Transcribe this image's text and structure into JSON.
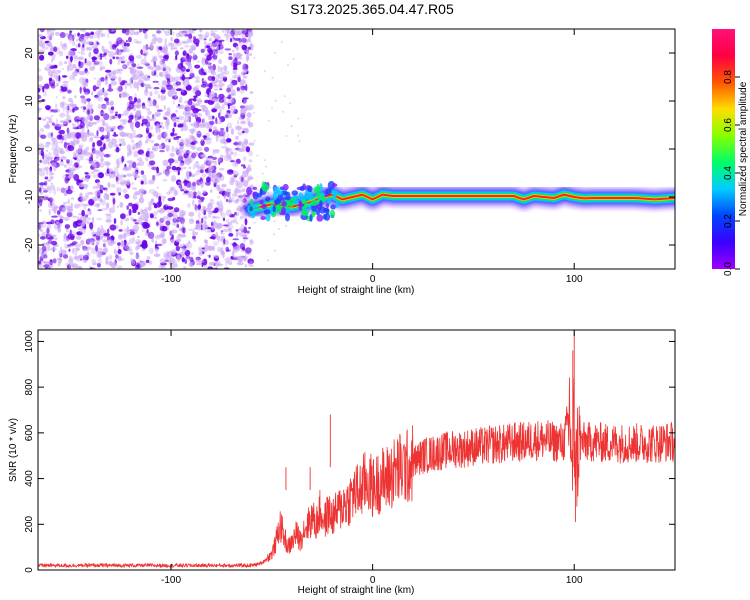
{
  "title": "S173.2025.365.04.47.R05",
  "colors": {
    "snr_line": "#ee3333",
    "axis": "#000000",
    "speckle_strong": "#6a00e8",
    "speckle_light": "#c9a8f5"
  },
  "chart_data": [
    {
      "type": "heatmap",
      "xlabel": "Height of straight line (km)",
      "ylabel": "Frequency (Hz)",
      "xlim": [
        -166,
        150
      ],
      "ylim": [
        -25,
        25
      ],
      "x_ticks": [
        -100,
        0,
        100
      ],
      "y_ticks": [
        -20,
        -10,
        0,
        10,
        20
      ],
      "grid": false,
      "noise_region_x": [
        -166,
        -60
      ],
      "signal_band_hz": -10,
      "signal_band_trace": {
        "x": [
          -60,
          -50,
          -40,
          -30,
          -25,
          -20,
          -15,
          -10,
          -5,
          0,
          5,
          10,
          20,
          40,
          60,
          70,
          75,
          80,
          90,
          95,
          100,
          105,
          110,
          120,
          130,
          140,
          150
        ],
        "y": [
          -12.5,
          -11.5,
          -12,
          -11,
          -10,
          -9.5,
          -10.5,
          -10,
          -9.5,
          -10.5,
          -9.5,
          -9.8,
          -9.8,
          -9.8,
          -9.8,
          -9.8,
          -10.5,
          -9.8,
          -10.2,
          -9.5,
          -10,
          -10.3,
          -10.2,
          -10.2,
          -10.2,
          -10.5,
          -10.2
        ]
      },
      "colorbar": {
        "label": "Normalized spectral amplitude",
        "range": [
          0,
          1
        ],
        "ticks": [
          "0.0",
          "0.2",
          "0.4",
          "0.6",
          "0.8"
        ],
        "tick_values": [
          0,
          0.2,
          0.4,
          0.6,
          0.8
        ],
        "colormap": [
          "#a000ff",
          "#3a00ff",
          "#0044ff",
          "#00ccff",
          "#00ff66",
          "#88ff00",
          "#ffdd00",
          "#ff5500",
          "#ff0044",
          "#ff1177"
        ]
      }
    },
    {
      "type": "line",
      "xlabel": "Height of straight line (km)",
      "ylabel": "SNR (10 * v/v)",
      "xlim": [
        -166,
        150
      ],
      "ylim": [
        0,
        1050
      ],
      "x_ticks": [
        -100,
        0,
        100
      ],
      "y_ticks": [
        0,
        200,
        400,
        600,
        800,
        1000
      ],
      "grid": false,
      "series": [
        {
          "x": [
            -166,
            -140,
            -120,
            -100,
            -80,
            -60,
            -55,
            -50,
            -48,
            -46,
            -44,
            -42,
            -40,
            -38,
            -36,
            -34,
            -32,
            -30,
            -28,
            -26,
            -24,
            -22,
            -20,
            -18,
            -16,
            -14,
            -12,
            -10,
            -8,
            -6,
            -4,
            -2,
            0,
            2,
            4,
            6,
            8,
            10,
            12,
            14,
            16,
            18,
            20,
            25,
            30,
            35,
            40,
            45,
            50,
            55,
            60,
            65,
            70,
            75,
            80,
            85,
            90,
            95,
            98,
            99,
            100,
            101,
            102,
            105,
            110,
            115,
            120,
            125,
            130,
            135,
            140,
            145,
            150
          ],
          "y": [
            20,
            20,
            20,
            20,
            20,
            20,
            30,
            70,
            120,
            200,
            150,
            100,
            120,
            160,
            130,
            180,
            200,
            230,
            200,
            260,
            210,
            250,
            230,
            250,
            270,
            290,
            300,
            330,
            340,
            350,
            380,
            390,
            360,
            370,
            400,
            390,
            410,
            420,
            440,
            440,
            450,
            450,
            470,
            500,
            510,
            520,
            530,
            530,
            540,
            540,
            550,
            550,
            560,
            560,
            570,
            570,
            560,
            560,
            700,
            400,
            650,
            450,
            550,
            560,
            560,
            555,
            555,
            555,
            555,
            555,
            555,
            560,
            560
          ]
        }
      ]
    }
  ]
}
